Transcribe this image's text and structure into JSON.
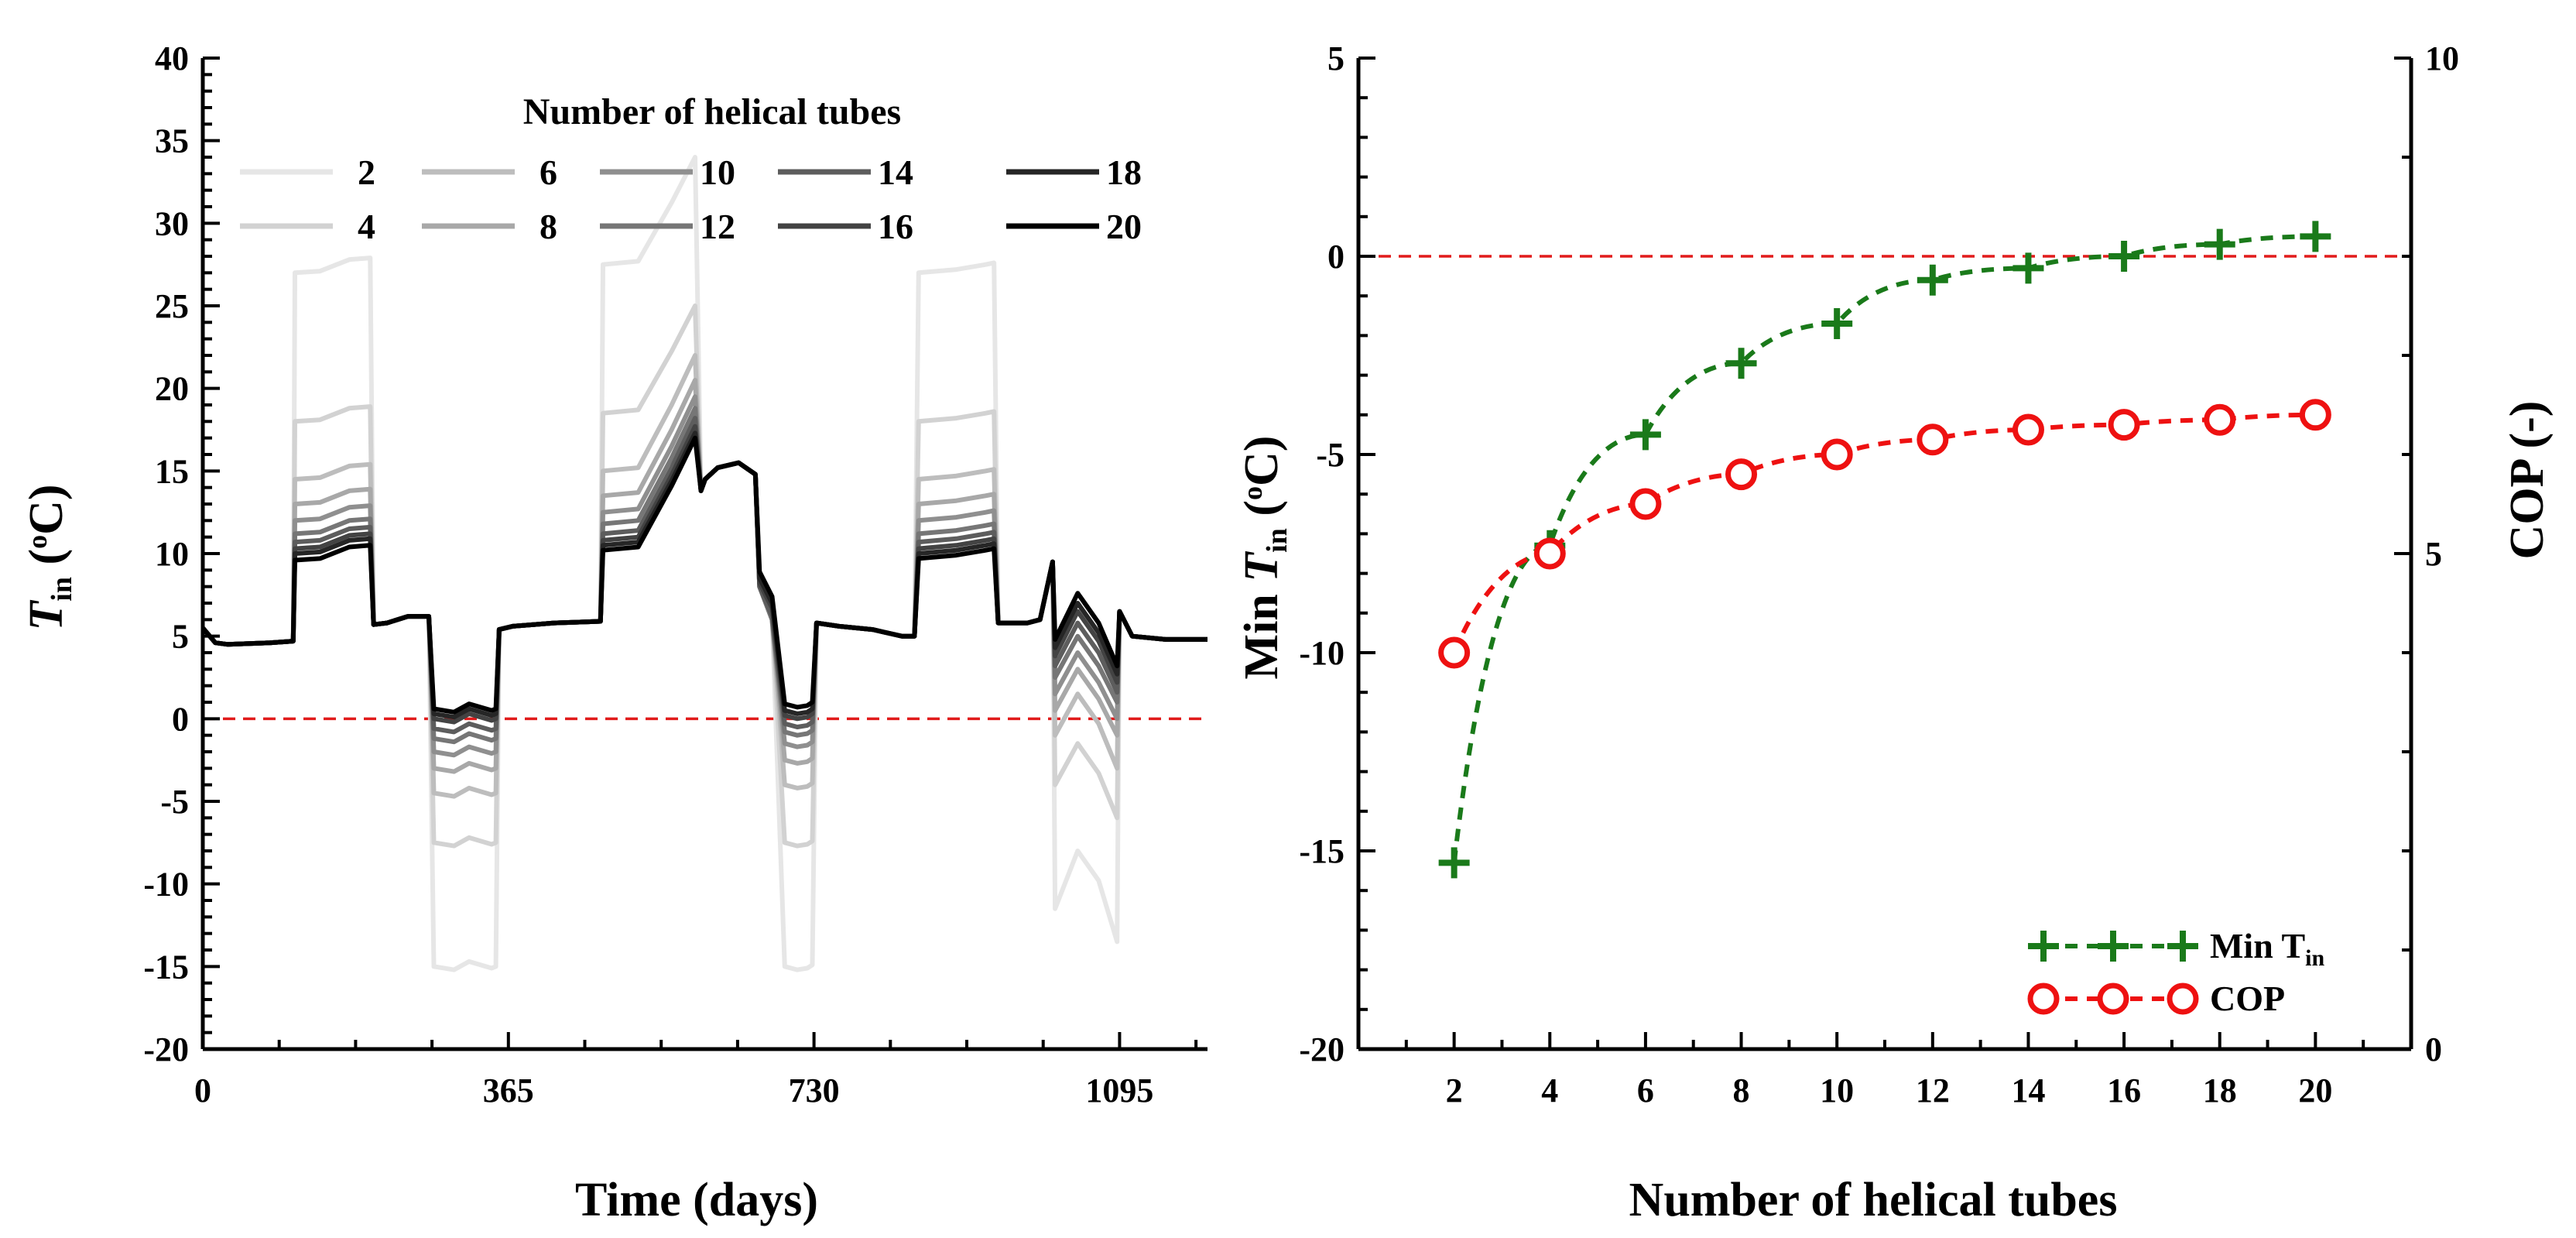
{
  "chart_data": [
    {
      "type": "line",
      "xlabel": "Time (days)",
      "ylabel_main": "T",
      "ylabel_sub": "in",
      "ylabel_rest": " (",
      "ylabel_unit_sup": "o",
      "ylabel_unit": "C)",
      "xlim": [
        0,
        1200
      ],
      "ylim": [
        -20,
        40
      ],
      "xticks": [
        0,
        365,
        730,
        1095
      ],
      "yticks": [
        -20,
        -15,
        -10,
        -5,
        0,
        5,
        10,
        15,
        20,
        25,
        30,
        35,
        40
      ],
      "reference_line_y": 0,
      "legend_title": "Number of helical tubes",
      "series": [
        {
          "name": "2",
          "color": "#e6e6e6",
          "values": {
            "summer1": 27.0,
            "winter1": -15.0,
            "summer2": 27.5,
            "summer2_end": 34.0,
            "winter2": -15.0,
            "summer3": 27.0,
            "winter3": -11.5,
            "winter3_mid": -8.0,
            "winter3_end": -13.5
          }
        },
        {
          "name": "4",
          "color": "#d2d2d2",
          "values": {
            "summer1": 18.0,
            "winter1": -7.5,
            "summer2": 18.5,
            "summer2_end": 25.0,
            "winter2": -7.5,
            "summer3": 18.0,
            "winter3": -4.0,
            "winter3_mid": -1.5,
            "winter3_end": -6.0
          }
        },
        {
          "name": "6",
          "color": "#bdbdbd",
          "values": {
            "summer1": 14.5,
            "winter1": -4.5,
            "summer2": 15.0,
            "summer2_end": 22.0,
            "winter2": -4.0,
            "summer3": 14.5,
            "winter3": -1.0,
            "winter3_mid": 1.5,
            "winter3_end": -3.0
          }
        },
        {
          "name": "8",
          "color": "#a8a8a8",
          "values": {
            "summer1": 13.0,
            "winter1": -3.0,
            "summer2": 13.5,
            "summer2_end": 20.5,
            "winter2": -2.5,
            "summer3": 13.0,
            "winter3": 0.5,
            "winter3_mid": 3.0,
            "winter3_end": -1.0
          }
        },
        {
          "name": "10",
          "color": "#8f8f8f",
          "values": {
            "summer1": 12.0,
            "winter1": -2.0,
            "summer2": 12.5,
            "summer2_end": 19.5,
            "winter2": -1.5,
            "summer3": 12.0,
            "winter3": 1.5,
            "winter3_mid": 4.0,
            "winter3_end": 0.0
          }
        },
        {
          "name": "12",
          "color": "#767676",
          "values": {
            "summer1": 11.2,
            "winter1": -1.2,
            "summer2": 11.8,
            "summer2_end": 18.8,
            "winter2": -0.8,
            "summer3": 11.2,
            "winter3": 2.5,
            "winter3_mid": 5.0,
            "winter3_end": 1.0
          }
        },
        {
          "name": "14",
          "color": "#5d5d5d",
          "values": {
            "summer1": 10.7,
            "winter1": -0.6,
            "summer2": 11.2,
            "summer2_end": 18.2,
            "winter2": -0.3,
            "summer3": 10.7,
            "winter3": 3.2,
            "winter3_mid": 5.8,
            "winter3_end": 1.6
          }
        },
        {
          "name": "16",
          "color": "#434343",
          "values": {
            "summer1": 10.3,
            "winter1": 0.0,
            "summer2": 10.8,
            "summer2_end": 17.7,
            "winter2": 0.2,
            "summer3": 10.3,
            "winter3": 3.8,
            "winter3_mid": 6.5,
            "winter3_end": 2.2
          }
        },
        {
          "name": "18",
          "color": "#262626",
          "values": {
            "summer1": 10.0,
            "winter1": 0.3,
            "summer2": 10.5,
            "summer2_end": 17.3,
            "winter2": 0.5,
            "summer3": 10.0,
            "winter3": 4.3,
            "winter3_mid": 7.0,
            "winter3_end": 2.7
          }
        },
        {
          "name": "20",
          "color": "#000000",
          "values": {
            "summer1": 9.6,
            "winter1": 0.6,
            "summer2": 10.2,
            "summer2_end": 17.0,
            "winter2": 0.9,
            "summer3": 9.7,
            "winter3": 4.8,
            "winter3_mid": 7.6,
            "winter3_end": 3.2
          }
        }
      ]
    },
    {
      "type": "line",
      "xlabel": "Number of helical tubes",
      "ylabel_main": "Min ",
      "ylabel_ital": "T",
      "ylabel_sub": "in",
      "ylabel_rest": " (",
      "ylabel_unit_sup": "o",
      "ylabel_unit": "C)",
      "y2label": "COP (-)",
      "x": [
        2,
        4,
        6,
        8,
        10,
        12,
        14,
        16,
        18,
        20
      ],
      "xlim": [
        0,
        22
      ],
      "ylim": [
        -20,
        5
      ],
      "y2lim": [
        0,
        10
      ],
      "yticks": [
        -20,
        -15,
        -10,
        -5,
        0,
        5
      ],
      "y2ticks": [
        0,
        5,
        10
      ],
      "reference_line_y": 0,
      "series": [
        {
          "name": "Min T",
          "name_sub": "in",
          "axis": "left",
          "marker": "plus",
          "color": "#1a7a1a",
          "values": [
            -15.3,
            -7.3,
            -4.5,
            -2.7,
            -1.7,
            -0.6,
            -0.3,
            0.0,
            0.3,
            0.5
          ]
        },
        {
          "name": "COP",
          "axis": "right",
          "marker": "circle",
          "color": "#ee1111",
          "values": [
            4.0,
            5.0,
            5.5,
            5.8,
            6.0,
            6.15,
            6.25,
            6.3,
            6.35,
            6.4
          ]
        }
      ]
    }
  ]
}
